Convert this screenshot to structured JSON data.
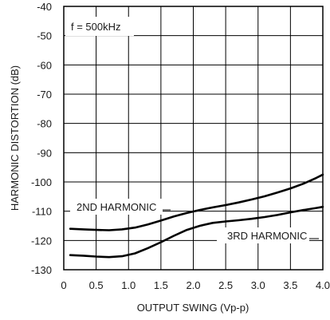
{
  "chart_data": {
    "type": "line",
    "xlabel": "OUTPUT SWING (Vp-p)",
    "ylabel": "HARMONIC DISTORTION (dB)",
    "xlim": [
      0,
      4.0
    ],
    "ylim": [
      -130,
      -40
    ],
    "x_ticks": [
      "0",
      "0.5",
      "1.0",
      "1.5",
      "2.0",
      "2.5",
      "3.0",
      "3.5",
      "4.0"
    ],
    "y_ticks": [
      "-40",
      "-50",
      "-60",
      "-70",
      "-80",
      "-90",
      "-100",
      "-110",
      "-120",
      "-130"
    ],
    "grid": true,
    "annotation": "f = 500kHz",
    "series": [
      {
        "name": "2ND HARMONIC",
        "x": [
          0.1,
          0.3,
          0.5,
          0.7,
          0.9,
          1.1,
          1.3,
          1.5,
          1.7,
          1.9,
          2.1,
          2.3,
          2.5,
          2.7,
          2.9,
          3.1,
          3.3,
          3.5,
          3.7,
          3.9,
          4.0
        ],
        "y": [
          -116,
          -116.2,
          -116.4,
          -116.5,
          -116.2,
          -115.6,
          -114.5,
          -113.2,
          -111.8,
          -110.6,
          -109.6,
          -108.7,
          -107.9,
          -107.0,
          -106.0,
          -104.9,
          -103.6,
          -102.2,
          -100.6,
          -98.6,
          -97.5
        ]
      },
      {
        "name": "3RD HARMONIC",
        "x": [
          0.1,
          0.3,
          0.5,
          0.7,
          0.9,
          1.1,
          1.3,
          1.5,
          1.7,
          1.9,
          2.1,
          2.3,
          2.5,
          2.7,
          2.9,
          3.1,
          3.3,
          3.5,
          3.7,
          3.9,
          4.0
        ],
        "y": [
          -125,
          -125.2,
          -125.5,
          -125.7,
          -125.4,
          -124.4,
          -122.6,
          -120.6,
          -118.4,
          -116.4,
          -115.0,
          -114.0,
          -113.5,
          -113.1,
          -112.6,
          -112.0,
          -111.3,
          -110.4,
          -109.6,
          -108.9,
          -108.5
        ]
      }
    ]
  }
}
